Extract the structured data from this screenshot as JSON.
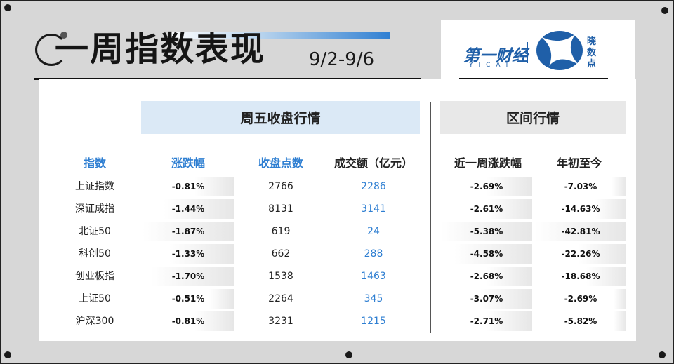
{
  "title": {
    "main": "一周指数表现",
    "date": "9/2-9/6"
  },
  "logo": {
    "left_text": "第一财经",
    "left_sub": "YICAI",
    "right_text": "晓数点"
  },
  "headers": {
    "weekly_close": "周五收盘行情",
    "range": "区间行情"
  },
  "columns": {
    "index": "指数",
    "change": "涨跌幅",
    "close": "收盘点数",
    "turnover": "成交额（亿元）",
    "week_change": "近一周涨跌幅",
    "ytd": "年初至今"
  },
  "rows": [
    {
      "name": "上证指数",
      "change": "-0.81%",
      "close": "2766",
      "turnover": "2286",
      "week_change": "-2.69%",
      "ytd": "-7.03%"
    },
    {
      "name": "深证成指",
      "change": "-1.44%",
      "close": "8131",
      "turnover": "3141",
      "week_change": "-2.61%",
      "ytd": "-14.63%"
    },
    {
      "name": "北证50",
      "change": "-1.87%",
      "close": "619",
      "turnover": "24",
      "week_change": "-5.38%",
      "ytd": "-42.81%"
    },
    {
      "name": "科创50",
      "change": "-1.33%",
      "close": "662",
      "turnover": "288",
      "week_change": "-4.58%",
      "ytd": "-22.26%"
    },
    {
      "name": "创业板指",
      "change": "-1.70%",
      "close": "1538",
      "turnover": "1463",
      "week_change": "-2.68%",
      "ytd": "-18.68%"
    },
    {
      "name": "上证50",
      "change": "-0.51%",
      "close": "2264",
      "turnover": "345",
      "week_change": "-3.07%",
      "ytd": "-2.69%"
    },
    {
      "name": "沪深300",
      "change": "-0.81%",
      "close": "3231",
      "turnover": "1215",
      "week_change": "-2.71%",
      "ytd": "-5.82%"
    }
  ],
  "colors": {
    "accent_blue": "#2f7fd2",
    "header_blue_bg": "#dbe9f6",
    "header_gray_bg": "#e8e8e8"
  }
}
